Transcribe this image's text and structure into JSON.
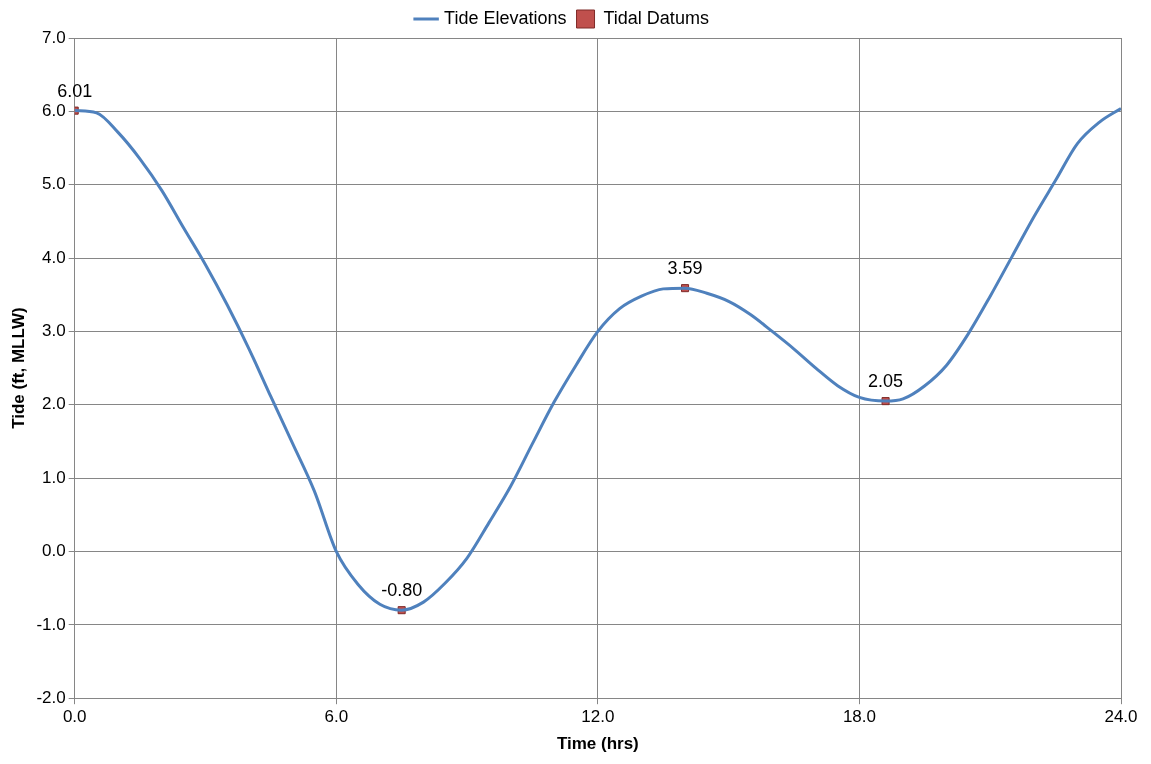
{
  "chart_data": {
    "type": "line",
    "xlabel": "Time (hrs)",
    "ylabel": "Tide (ft, MLLW)",
    "legend": "top",
    "grid": true,
    "xlim": [
      0,
      24
    ],
    "xticks": [
      {
        "value": 0,
        "label": "0.0"
      },
      {
        "value": 6,
        "label": "6.0"
      },
      {
        "value": 12,
        "label": "12.0"
      },
      {
        "value": 18,
        "label": "18.0"
      },
      {
        "value": 24,
        "label": "24.0"
      }
    ],
    "ylim": [
      -2,
      7
    ],
    "yticks": [
      {
        "value": -2,
        "label": "-2.0"
      },
      {
        "value": -1,
        "label": "-1.0"
      },
      {
        "value": 0,
        "label": "0.0"
      },
      {
        "value": 1,
        "label": "1.0"
      },
      {
        "value": 2,
        "label": "2.0"
      },
      {
        "value": 3,
        "label": "3.0"
      },
      {
        "value": 4,
        "label": "4.0"
      },
      {
        "value": 5,
        "label": "5.0"
      },
      {
        "value": 6,
        "label": "6.0"
      },
      {
        "value": 7,
        "label": "7.0"
      }
    ],
    "series": [
      {
        "name": "Tide Elevations",
        "color": "#4f81bd",
        "marker": "none",
        "line_style": "solid",
        "x": [
          0,
          0.5,
          1,
          1.5,
          2,
          2.5,
          3,
          3.5,
          4,
          4.5,
          5,
          5.5,
          6,
          6.5,
          7,
          7.5,
          8,
          8.5,
          9,
          9.5,
          10,
          10.5,
          11,
          11.5,
          12,
          12.5,
          13,
          13.5,
          14,
          14.5,
          15,
          15.5,
          16,
          16.5,
          17,
          17.5,
          18,
          18.6,
          19,
          19.5,
          20,
          20.5,
          21,
          21.5,
          22,
          22.5,
          23,
          23.5,
          24
        ],
        "values": [
          6.01,
          5.98,
          5.71,
          5.35,
          4.92,
          4.41,
          3.91,
          3.36,
          2.76,
          2.11,
          1.47,
          0.82,
          0.0,
          -0.45,
          -0.72,
          -0.8,
          -0.69,
          -0.43,
          -0.09,
          0.39,
          0.89,
          1.47,
          2.04,
          2.54,
          3.0,
          3.31,
          3.48,
          3.58,
          3.59,
          3.52,
          3.41,
          3.23,
          3.0,
          2.76,
          2.5,
          2.26,
          2.1,
          2.05,
          2.08,
          2.26,
          2.54,
          2.97,
          3.48,
          4.02,
          4.56,
          5.06,
          5.56,
          5.85,
          6.04
        ]
      },
      {
        "name": "Tidal Datums",
        "type": "scatter",
        "color": "#c0504d",
        "marker": "square",
        "x": [
          0,
          7.5,
          14,
          18.6
        ],
        "values": [
          6.01,
          -0.8,
          3.59,
          2.05
        ],
        "value_labels": [
          "6.01",
          "-0.80",
          "3.59",
          "2.05"
        ]
      }
    ]
  }
}
